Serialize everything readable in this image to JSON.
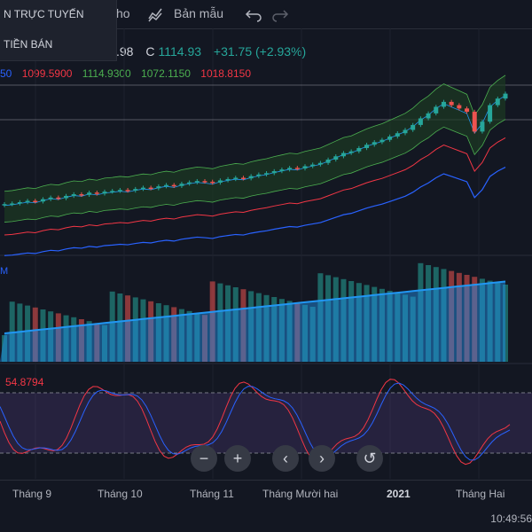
{
  "dropdown": {
    "item_online": "N TRỰC TUYẾN",
    "item_premarket": "TIỀN BÁN"
  },
  "toolbar": {
    "partial_label": "ho",
    "templates_label": "Bản mẫu"
  },
  "legend": {
    "ohlc_partial": ".98",
    "close_prefix": "C",
    "close_value": "1114.93",
    "change": "+31.75 (+2.93%)",
    "ind_values": [
      "50",
      "1099.5900",
      "1114.9300",
      "1072.1150",
      "1018.8150"
    ],
    "ind_colors": [
      "#2962ff",
      "#f23645",
      "#4caf50",
      "#4caf50",
      "#f23645"
    ]
  },
  "volume_label": "M",
  "rsi": {
    "value": "54.8794"
  },
  "nav": {
    "zoom_out": "−",
    "zoom_in": "+",
    "scroll_left": "‹",
    "scroll_right": "›",
    "reset": "↺"
  },
  "time_axis": {
    "labels": [
      "Tháng 9",
      "Tháng 10",
      "Tháng 11",
      "Tháng Mười hai",
      "2021",
      "Tháng Hai"
    ]
  },
  "clock": "10:49:56",
  "colors": {
    "up": "#26a69a",
    "down": "#ef5350",
    "bb_fill": "#1c3b22",
    "rsi_band": "#7e57c2"
  },
  "chart_data": {
    "type": "candlestick",
    "price_path_note": "",
    "closes": [
      780,
      782,
      786,
      790,
      788,
      795,
      800,
      798,
      805,
      810,
      808,
      815,
      812,
      818,
      820,
      823,
      821,
      826,
      830,
      828,
      834,
      838,
      835,
      842,
      846,
      850,
      848,
      845,
      852,
      856,
      860,
      858,
      865,
      870,
      874,
      880,
      885,
      890,
      888,
      895,
      900,
      905,
      915,
      925,
      935,
      940,
      950,
      960,
      968,
      975,
      985,
      995,
      1005,
      1020,
      1040,
      1055,
      1075,
      1090,
      1080,
      1070,
      1060,
      1000,
      1030,
      1080,
      1100,
      1114.93
    ]
  }
}
